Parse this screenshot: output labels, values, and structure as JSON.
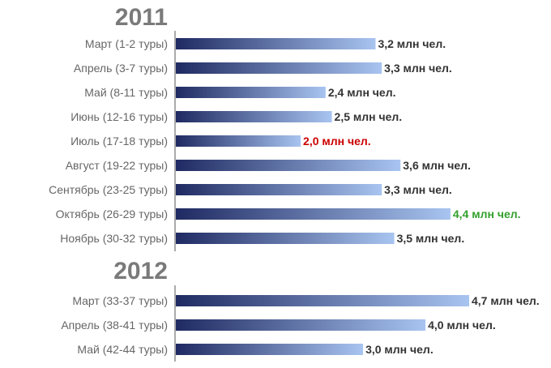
{
  "colors": {
    "bar_dark": "#1f2a62",
    "bar_light": "#a8c4f0",
    "axis": "#555555",
    "label": "#666666",
    "year": "#7a7a7a",
    "value_default": "#333333",
    "value_min": "#cc0000",
    "value_max": "#33a02c"
  },
  "chart_data": {
    "type": "bar",
    "orientation": "horizontal",
    "unit": "млн чел.",
    "xlim": [
      0,
      4.7
    ],
    "grid": false,
    "groups": [
      {
        "title": "2011",
        "categories": [
          "Март (1-2 туры)",
          "Апрель (3-7 туры)",
          "Май (8-11 туры)",
          "Июнь (12-16 туры)",
          "Июль (17-18 туры)",
          "Август (19-22 туры)",
          "Сентябрь (23-25 туры)",
          "Октябрь (26-29 туры)",
          "Ноябрь (30-32 туры)"
        ],
        "values": [
          3.2,
          3.3,
          2.4,
          2.5,
          2.0,
          3.6,
          3.3,
          4.4,
          3.5
        ],
        "labels": [
          "3,2 млн чел.",
          "3,3 млн чел.",
          "2,4 млн чел.",
          "2,5 млн чел.",
          "2,0 млн чел.",
          "3,6 млн чел.",
          "3,3 млн чел.",
          "4,4 млн чел.",
          "3,5 млн чел."
        ],
        "highlight": [
          "",
          "",
          "",
          "",
          "min",
          "",
          "",
          "max",
          ""
        ]
      },
      {
        "title": "2012",
        "categories": [
          "Март (33-37 туры)",
          "Апрель (38-41 туры)",
          "Май (42-44 туры)"
        ],
        "values": [
          4.7,
          4.0,
          3.0
        ],
        "labels": [
          "4,7 млн чел.",
          "4,0 млн чел.",
          "3,0 млн чел."
        ],
        "highlight": [
          "",
          "",
          ""
        ]
      }
    ]
  }
}
